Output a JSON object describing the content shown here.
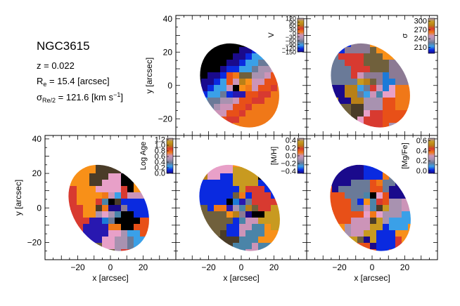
{
  "galaxy": {
    "name": "NGC3615",
    "z_label": "z = 0.022",
    "re_symbol": "R",
    "re_sub": "e",
    "re_value": " = 15.4 [arcsec]",
    "sigma_symbol": "σ",
    "sigma_sub": "Re/2",
    "sigma_value": " = 121.6 [km s",
    "sigma_exp": "−1",
    "sigma_close": "]"
  },
  "colors": {
    "map_palette": [
      "#1a0a8c",
      "#2818b0",
      "#0a2ae0",
      "#1c7ad8",
      "#3aa0e8",
      "#4a84a8",
      "#6a7a98",
      "#8c7a94",
      "#a892b0",
      "#cc94b8",
      "#e8a0c8",
      "#f07818",
      "#f89018",
      "#e85018",
      "#d83a30",
      "#b88018",
      "#c89a20",
      "#70603c",
      "#4a3c28",
      "#000000"
    ],
    "axis": "#000000"
  },
  "chart_data": [
    {
      "type": "heatmap",
      "name": "velocity",
      "colorbar_label": "V",
      "colorbar_ticks": [
        "120",
        "90",
        "60",
        "30",
        "0",
        "−30",
        "−60",
        "−90",
        "−120",
        "−150"
      ],
      "colorbar_range": [
        -150,
        120
      ],
      "ylabel": "y [arcsec]",
      "xlabel": "",
      "ylim": [
        -30,
        42
      ],
      "yticks": [
        "40",
        "20",
        "0",
        "−20"
      ],
      "xticks": []
    },
    {
      "type": "heatmap",
      "name": "dispersion",
      "colorbar_label": "σ",
      "colorbar_ticks": [
        "300",
        "270",
        "240",
        "210"
      ],
      "colorbar_range": [
        190,
        310
      ],
      "ylabel": "",
      "xlabel": "",
      "yticks": [],
      "xticks": []
    },
    {
      "type": "heatmap",
      "name": "age",
      "colorbar_label": "Log Age",
      "colorbar_ticks": [
        "1.2",
        "1.0",
        "0.8",
        "0.6",
        "0.4",
        "0.2",
        "0.0"
      ],
      "colorbar_range": [
        0.0,
        1.25
      ],
      "ylabel": "y [arcsec]",
      "xlabel": "x [arcsec]",
      "xlim": [
        -40,
        40
      ],
      "ylim": [
        -30,
        42
      ],
      "xticks": [
        "−20",
        "0",
        "20"
      ],
      "yticks": [
        "40",
        "20",
        "0",
        "−20"
      ]
    },
    {
      "type": "heatmap",
      "name": "metallicity",
      "colorbar_label": "[M/H]",
      "colorbar_ticks": [
        "0.4",
        "0.2",
        "0.0",
        "−0.2",
        "−0.4"
      ],
      "colorbar_range": [
        -0.45,
        0.45
      ],
      "ylabel": "",
      "xlabel": "x [arcsec]",
      "xticks": [
        "−20",
        "0",
        "20"
      ],
      "yticks": []
    },
    {
      "type": "heatmap",
      "name": "alpha",
      "colorbar_label": "[Mg/Fe]",
      "colorbar_ticks": [
        "0.6",
        "0.4",
        "0.2",
        "0.0"
      ],
      "colorbar_range": [
        -0.05,
        0.65
      ],
      "ylabel": "",
      "xlabel": "x [arcsec]",
      "xticks": [
        "−20",
        "0",
        "20"
      ],
      "yticks": []
    }
  ]
}
